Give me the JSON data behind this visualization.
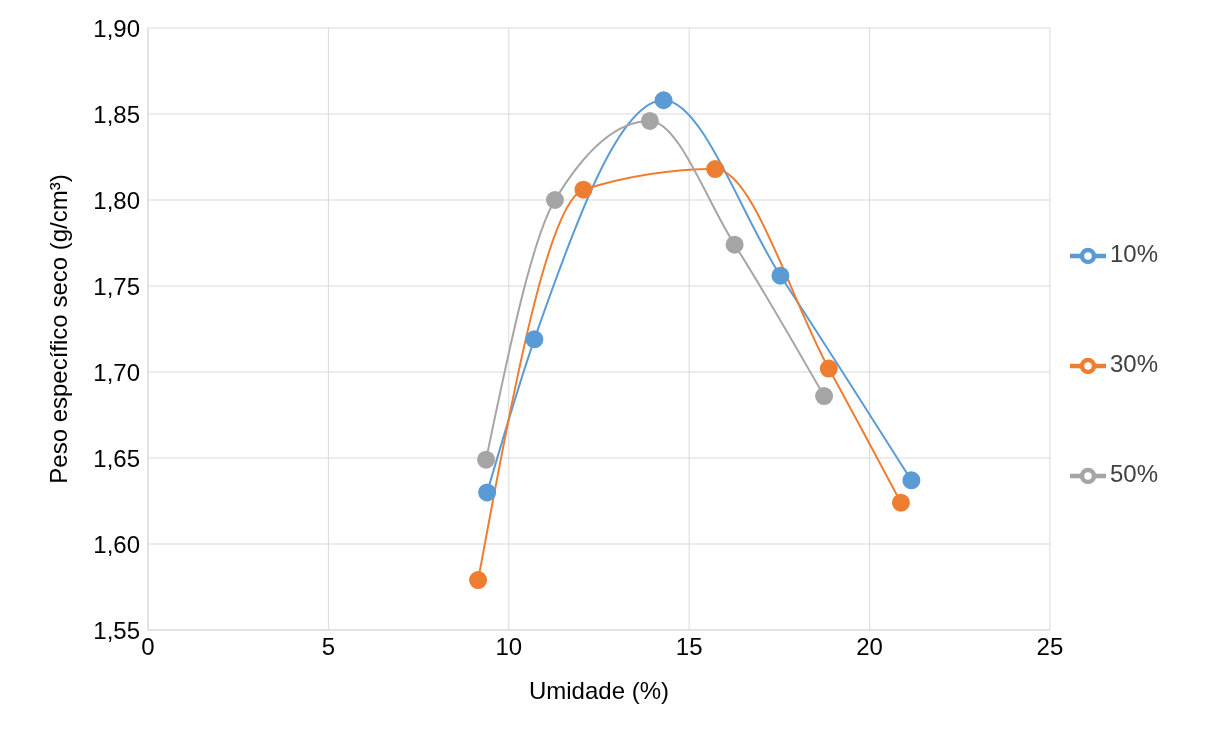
{
  "chart_data": {
    "type": "line",
    "xlabel": "Umidade (%)",
    "ylabel": "Peso específico seco (g/cm³)",
    "xlim": [
      0,
      25
    ],
    "xticks": [
      0,
      5,
      10,
      15,
      20,
      25
    ],
    "ylim": [
      1.55,
      1.9
    ],
    "yticks": [
      {
        "value": 1.55,
        "label": "1,55"
      },
      {
        "value": 1.6,
        "label": "1,60"
      },
      {
        "value": 1.65,
        "label": "1,65"
      },
      {
        "value": 1.7,
        "label": "1,70"
      },
      {
        "value": 1.75,
        "label": "1,75"
      },
      {
        "value": 1.8,
        "label": "1,80"
      },
      {
        "value": 1.85,
        "label": "1,85"
      },
      {
        "value": 1.9,
        "label": "1,90"
      }
    ],
    "grid": true,
    "legend": "right",
    "marker": "circle",
    "line_style": "solid",
    "series": [
      {
        "name": "10%",
        "color": "#5b9bd5",
        "x": [
          9.4,
          10.71,
          14.29,
          17.53,
          21.16
        ],
        "values": [
          1.63,
          1.719,
          1.858,
          1.756,
          1.637
        ]
      },
      {
        "name": "30%",
        "color": "#ed7d31",
        "x": [
          9.15,
          12.07,
          15.72,
          18.87,
          20.87
        ],
        "values": [
          1.579,
          1.806,
          1.818,
          1.702,
          1.624
        ]
      },
      {
        "name": "50%",
        "color": "#a5a5a5",
        "x": [
          9.37,
          11.28,
          13.91,
          16.26,
          18.74
        ],
        "values": [
          1.649,
          1.8,
          1.846,
          1.774,
          1.686
        ]
      }
    ]
  }
}
